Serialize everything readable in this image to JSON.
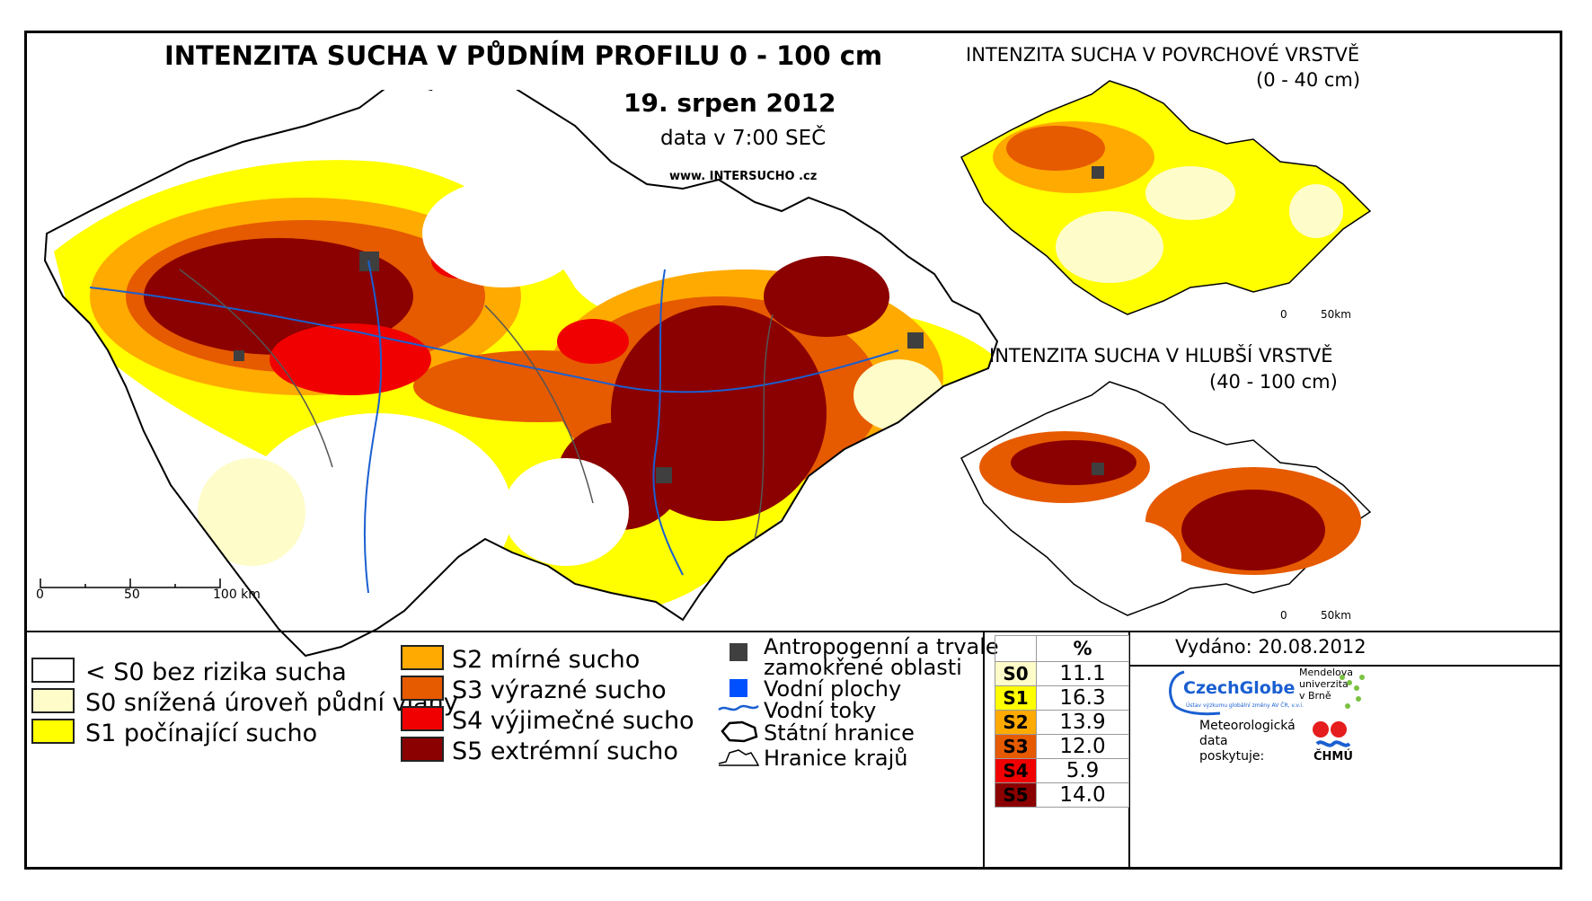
{
  "main": {
    "title": "INTENZITA SUCHA V PŮDNÍM PROFILU 0 - 100 cm",
    "date": "19. srpen 2012",
    "time": "data v 7:00 SEČ",
    "website": "www. INTERSUCHO .cz",
    "scale": {
      "labels": [
        "0",
        "50",
        "100 km"
      ]
    }
  },
  "inset_top": {
    "title_line1": "INTENZITA SUCHA V POVRCHOVÉ VRSTVĚ",
    "title_line2": "(0 - 40 cm)",
    "scale": [
      "0",
      "50km"
    ]
  },
  "inset_bottom": {
    "title_line1": "INTENZITA SUCHA V HLUBŠÍ VRSTVĚ",
    "title_line2": "(40 - 100 cm)",
    "scale": [
      "0",
      "50km"
    ]
  },
  "legend_categories": [
    {
      "code": "<S0",
      "label": "< S0 bez rizika sucha",
      "color": "#ffffff"
    },
    {
      "code": "S0",
      "label": "S0 snížená úroveň půdní vláhy",
      "color": "#fefcc8"
    },
    {
      "code": "S1",
      "label": "S1 počínající sucho",
      "color": "#ffff00"
    },
    {
      "code": "S2",
      "label": "S2 mírné sucho",
      "color": "#ffaa00"
    },
    {
      "code": "S3",
      "label": "S3 výrazné sucho",
      "color": "#e65a00"
    },
    {
      "code": "S4",
      "label": "S4 výjimečné sucho",
      "color": "#f00000"
    },
    {
      "code": "S5",
      "label": "S5 extrémní sucho",
      "color": "#8b0000"
    }
  ],
  "legend_features": [
    {
      "label": "Antropogenní a trvale zamokřené oblasti",
      "line1": "Antropogenní a trvale",
      "line2": "zamokřené oblasti",
      "color": "#3f3f3f"
    },
    {
      "label": "Vodní plochy",
      "color": "#0050ff"
    },
    {
      "label": "Vodní toky",
      "color": "#1a5fd1"
    },
    {
      "label": "Státní hranice",
      "color": "#000000"
    },
    {
      "label": "Hranice krajů",
      "color": "#000000"
    }
  ],
  "percent_table": {
    "header": "%",
    "rows": [
      {
        "code": "S0",
        "value": "11.1",
        "color": "#fefcc8"
      },
      {
        "code": "S1",
        "value": "16.3",
        "color": "#ffff00"
      },
      {
        "code": "S2",
        "value": "13.9",
        "color": "#ffaa00"
      },
      {
        "code": "S3",
        "value": "12.0",
        "color": "#e65a00"
      },
      {
        "code": "S4",
        "value": "5.9",
        "color": "#f00000"
      },
      {
        "code": "S5",
        "value": "14.0",
        "color": "#8b0000"
      }
    ]
  },
  "credits": {
    "issued": "Vydáno: 20.08.2012",
    "czechglobe": "CzechGlobe",
    "czechglobe_sub": "Ústav výzkumu globální změny AV ČR, v.v.i.",
    "mendel_line1": "Mendelova",
    "mendel_line2": "univerzita",
    "mendel_line3": "v Brně",
    "data_line1": "Meteorologická",
    "data_line2": "data",
    "data_line3": "poskytuje:",
    "chmu": "ČHMÚ"
  }
}
